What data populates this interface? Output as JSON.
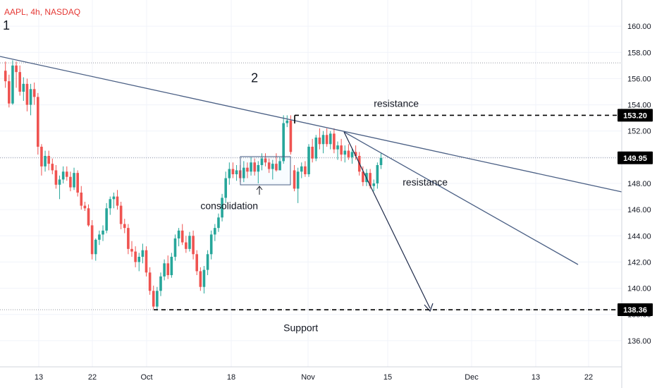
{
  "chart_data": {
    "type": "candlestick",
    "title": "AAPL, 4h, NASDAQ",
    "title_color": "#e53935",
    "up_color": "#26a69a",
    "down_color": "#ef5350",
    "trendline_color": "#4a5f84",
    "arrow_color": "#1e2a4a",
    "resistance_label_color": "#3c6d8c",
    "ylim": [
      134.0,
      162.0
    ],
    "y_ticks": [
      "136.00",
      "138.00",
      "140.00",
      "142.00",
      "144.00",
      "146.00",
      "148.00",
      "150.00",
      "152.00",
      "154.00",
      "156.00",
      "158.00",
      "160.00"
    ],
    "x_ticks": [
      "13",
      "22",
      "Oct",
      "18",
      "Nov",
      "15",
      "Dec",
      "13",
      "22"
    ],
    "price_tags": [
      {
        "label": "153.20",
        "value": 153.2,
        "style": "dark"
      },
      {
        "label": "149.95",
        "value": 149.95,
        "style": "dark"
      },
      {
        "label": "138.36",
        "value": 138.36,
        "style": "dark"
      }
    ],
    "reference_lines": [
      {
        "value": 157.2,
        "style": "dotted"
      },
      {
        "value": 149.95,
        "style": "dotted"
      },
      {
        "value": 138.36,
        "style": "dotted"
      }
    ],
    "annotations": [
      {
        "text": "1",
        "x_bar": -1,
        "y": 160.0,
        "size": "large"
      },
      {
        "text": "2",
        "x_bar": 68,
        "y": 156.0,
        "size": "large"
      },
      {
        "text": "resistance",
        "x_bar": 102,
        "y": 154.1,
        "size": "normal",
        "color": "dark"
      },
      {
        "text": "resistance",
        "x_bar": 110,
        "y": 148.1,
        "size": "normal",
        "color": "blue"
      },
      {
        "text": "consolidation",
        "x_bar": 54,
        "y": 146.3,
        "size": "normal",
        "color": "dark"
      },
      {
        "text": "Support",
        "x_bar": 77,
        "y": 137.0,
        "size": "normal",
        "color": "dark"
      }
    ],
    "candles": [
      [
        156.6,
        157.3,
        155.3,
        155.8
      ],
      [
        155.8,
        156.3,
        153.8,
        154.1
      ],
      [
        154.1,
        157.4,
        154.0,
        157.0
      ],
      [
        157.0,
        157.3,
        155.3,
        156.5
      ],
      [
        156.5,
        157.0,
        154.7,
        155.0
      ],
      [
        155.0,
        156.1,
        154.3,
        155.6
      ],
      [
        155.6,
        156.0,
        153.5,
        154.0
      ],
      [
        154.0,
        155.6,
        153.2,
        155.2
      ],
      [
        155.2,
        155.7,
        154.0,
        154.6
      ],
      [
        154.6,
        154.9,
        150.2,
        150.8
      ],
      [
        150.8,
        151.0,
        148.6,
        149.3
      ],
      [
        149.3,
        150.5,
        148.9,
        150.1
      ],
      [
        150.1,
        150.5,
        149.0,
        149.5
      ],
      [
        149.5,
        149.9,
        148.7,
        149.0
      ],
      [
        149.0,
        149.4,
        147.6,
        147.9
      ],
      [
        147.9,
        148.6,
        146.8,
        148.3
      ],
      [
        148.3,
        149.3,
        148.0,
        148.9
      ],
      [
        148.9,
        149.3,
        148.2,
        148.5
      ],
      [
        148.5,
        148.9,
        147.4,
        147.7
      ],
      [
        147.7,
        149.2,
        147.5,
        148.8
      ],
      [
        148.8,
        149.0,
        147.0,
        147.3
      ],
      [
        147.3,
        147.8,
        146.0,
        146.3
      ],
      [
        146.3,
        146.6,
        145.9,
        146.1
      ],
      [
        146.1,
        146.4,
        144.7,
        144.8
      ],
      [
        144.8,
        145.2,
        142.2,
        142.6
      ],
      [
        142.6,
        143.8,
        142.1,
        143.7
      ],
      [
        143.7,
        144.4,
        143.3,
        144.1
      ],
      [
        144.1,
        144.8,
        143.6,
        144.4
      ],
      [
        144.4,
        146.5,
        144.2,
        146.1
      ],
      [
        146.1,
        147.0,
        145.6,
        146.8
      ],
      [
        146.8,
        147.3,
        146.1,
        147.0
      ],
      [
        147.0,
        147.5,
        146.0,
        146.3
      ],
      [
        146.3,
        146.6,
        144.5,
        144.9
      ],
      [
        144.9,
        145.3,
        144.2,
        144.6
      ],
      [
        144.6,
        144.9,
        142.6,
        143.0
      ],
      [
        143.0,
        143.6,
        142.4,
        142.8
      ],
      [
        142.8,
        143.2,
        141.6,
        142.0
      ],
      [
        142.0,
        142.7,
        141.3,
        142.4
      ],
      [
        142.4,
        143.4,
        141.9,
        142.9
      ],
      [
        142.9,
        143.2,
        140.9,
        141.2
      ],
      [
        141.2,
        141.6,
        139.5,
        139.8
      ],
      [
        139.8,
        140.2,
        138.4,
        138.6
      ],
      [
        138.6,
        140.1,
        138.3,
        139.8
      ],
      [
        139.8,
        141.2,
        139.4,
        140.9
      ],
      [
        140.9,
        142.2,
        140.6,
        141.9
      ],
      [
        141.9,
        142.5,
        140.7,
        141.0
      ],
      [
        141.0,
        142.7,
        140.8,
        142.4
      ],
      [
        142.4,
        144.1,
        142.1,
        143.8
      ],
      [
        143.8,
        144.6,
        143.2,
        144.4
      ],
      [
        144.4,
        144.9,
        143.3,
        143.5
      ],
      [
        143.5,
        144.0,
        142.7,
        143.0
      ],
      [
        143.0,
        144.3,
        142.8,
        144.0
      ],
      [
        144.0,
        144.4,
        142.2,
        142.6
      ],
      [
        142.6,
        142.9,
        141.0,
        141.3
      ],
      [
        141.3,
        141.6,
        139.8,
        140.1
      ],
      [
        140.1,
        141.7,
        139.6,
        141.4
      ],
      [
        141.4,
        142.9,
        141.0,
        142.6
      ],
      [
        142.6,
        144.4,
        142.2,
        144.1
      ],
      [
        144.1,
        144.9,
        143.6,
        144.6
      ],
      [
        144.6,
        145.7,
        144.3,
        145.4
      ],
      [
        145.4,
        147.2,
        145.1,
        146.9
      ],
      [
        146.9,
        148.9,
        146.5,
        148.4
      ],
      [
        148.4,
        149.6,
        147.9,
        149.1
      ],
      [
        149.1,
        149.6,
        148.4,
        148.7
      ],
      [
        148.7,
        149.4,
        148.2,
        149.0
      ],
      [
        149.0,
        149.4,
        148.1,
        148.4
      ],
      [
        148.4,
        149.7,
        148.1,
        149.2
      ],
      [
        149.2,
        149.6,
        148.4,
        148.9
      ],
      [
        148.9,
        150.0,
        148.6,
        149.6
      ],
      [
        149.6,
        149.9,
        148.6,
        148.9
      ],
      [
        148.9,
        149.7,
        148.0,
        149.4
      ],
      [
        149.4,
        150.3,
        149.0,
        149.9
      ],
      [
        149.9,
        150.3,
        149.3,
        149.6
      ],
      [
        149.6,
        149.9,
        148.8,
        149.1
      ],
      [
        149.1,
        149.8,
        148.3,
        149.5
      ],
      [
        149.5,
        150.3,
        148.9,
        149.0
      ],
      [
        149.0,
        150.0,
        149.0,
        149.7
      ],
      [
        149.7,
        153.2,
        149.5,
        152.6
      ],
      [
        152.6,
        153.2,
        152.3,
        152.8
      ],
      [
        152.8,
        153.2,
        150.2,
        150.4
      ],
      [
        149.0,
        149.4,
        147.4,
        147.6
      ],
      [
        147.6,
        149.2,
        146.5,
        148.9
      ],
      [
        148.9,
        149.6,
        148.4,
        149.3
      ],
      [
        149.3,
        149.7,
        148.5,
        148.7
      ],
      [
        148.7,
        151.0,
        148.5,
        150.8
      ],
      [
        150.8,
        151.4,
        149.6,
        149.9
      ],
      [
        149.9,
        151.7,
        149.7,
        151.5
      ],
      [
        151.5,
        152.2,
        150.6,
        151.0
      ],
      [
        151.0,
        152.0,
        150.3,
        151.7
      ],
      [
        151.7,
        152.2,
        150.8,
        151.0
      ],
      [
        151.0,
        152.0,
        150.6,
        151.8
      ],
      [
        151.8,
        152.2,
        150.3,
        150.6
      ],
      [
        150.6,
        151.2,
        149.8,
        150.9
      ],
      [
        150.9,
        151.4,
        149.7,
        150.2
      ],
      [
        150.2,
        150.9,
        149.6,
        150.5
      ],
      [
        150.5,
        151.0,
        149.8,
        150.0
      ],
      [
        150.0,
        150.7,
        149.5,
        150.4
      ],
      [
        150.4,
        150.9,
        149.8,
        150.1
      ],
      [
        150.1,
        150.4,
        148.6,
        148.9
      ],
      [
        148.9,
        149.3,
        147.8,
        148.1
      ],
      [
        148.1,
        149.1,
        147.8,
        148.8
      ],
      [
        148.8,
        149.1,
        147.6,
        147.8
      ],
      [
        147.8,
        148.3,
        147.4,
        148.0
      ],
      [
        148.0,
        149.6,
        147.6,
        149.4
      ],
      [
        149.4,
        150.3,
        149.1,
        149.95
      ]
    ]
  }
}
